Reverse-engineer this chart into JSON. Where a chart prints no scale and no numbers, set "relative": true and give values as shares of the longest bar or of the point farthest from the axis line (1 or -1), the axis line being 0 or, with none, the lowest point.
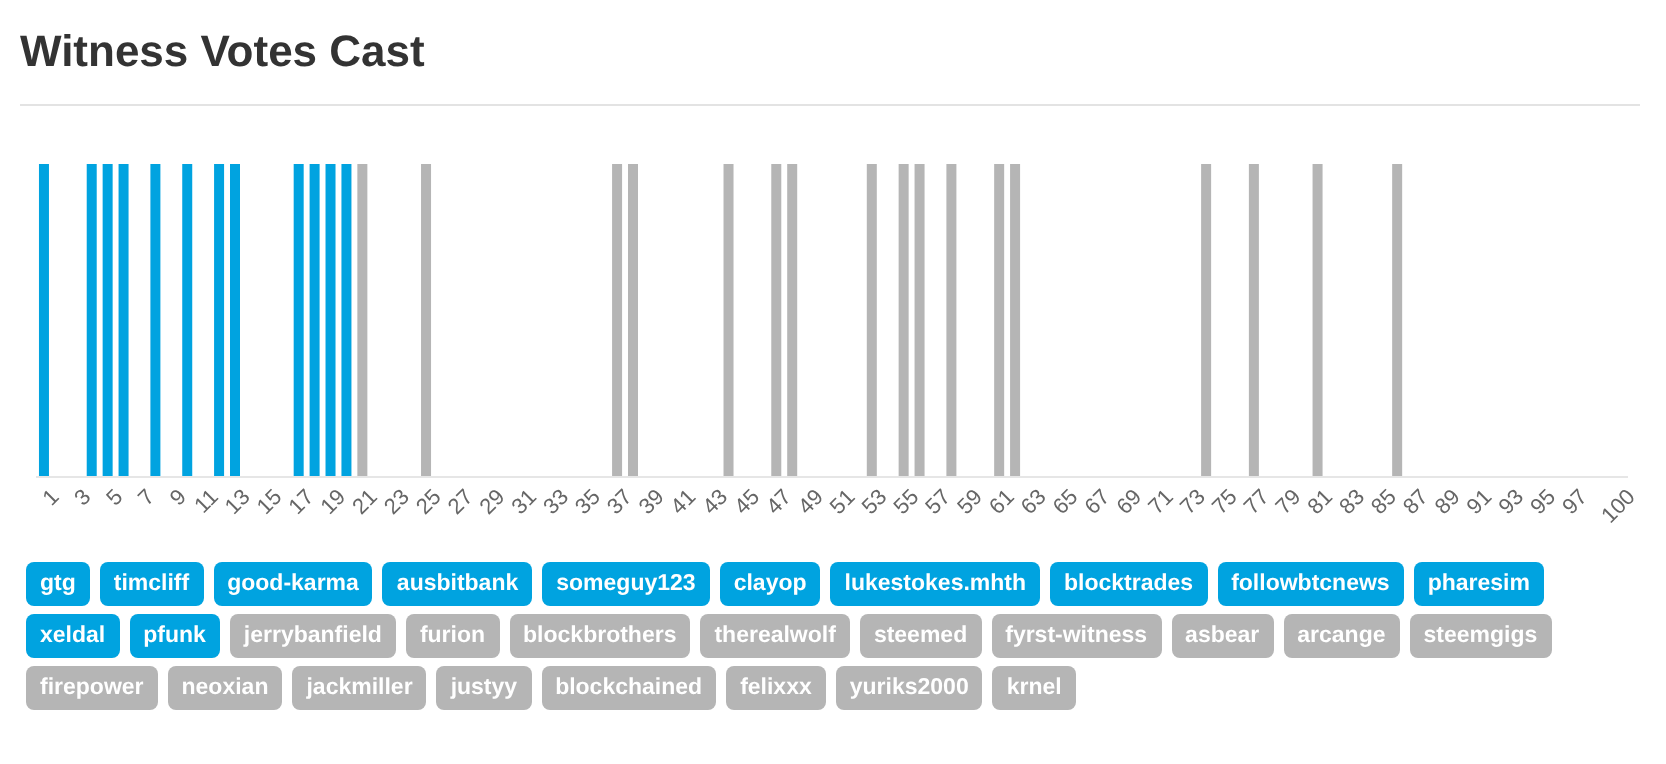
{
  "chart_data": {
    "type": "bar",
    "title": "Witness Votes Cast",
    "relative": true,
    "categories": [
      "1",
      null,
      "3",
      null,
      "5",
      null,
      "7",
      null,
      "9",
      null,
      "11",
      null,
      "13",
      null,
      "15",
      null,
      "17",
      null,
      "19",
      null,
      "21",
      null,
      "23",
      null,
      "25",
      null,
      "27",
      null,
      "29",
      null,
      "31",
      null,
      "33",
      null,
      "35",
      null,
      "37",
      null,
      "39",
      null,
      "41",
      null,
      "43",
      null,
      "45",
      null,
      "47",
      null,
      "49",
      null,
      "51",
      null,
      "53",
      null,
      "55",
      null,
      "57",
      null,
      "59",
      null,
      "61",
      null,
      "63",
      null,
      "65",
      null,
      "67",
      null,
      "69",
      null,
      "71",
      null,
      "73",
      null,
      "75",
      null,
      "77",
      null,
      "79",
      null,
      "81",
      null,
      "83",
      null,
      "85",
      null,
      "87",
      null,
      "89",
      null,
      "91",
      null,
      "93",
      null,
      "95",
      null,
      "97",
      null,
      null,
      "100"
    ],
    "values": [
      1,
      null,
      null,
      1,
      1,
      1,
      null,
      1,
      null,
      1,
      null,
      1,
      1,
      null,
      null,
      null,
      1,
      1,
      1,
      1,
      1,
      null,
      null,
      null,
      1,
      null,
      null,
      null,
      null,
      null,
      null,
      null,
      null,
      null,
      null,
      null,
      1,
      1,
      null,
      null,
      null,
      null,
      null,
      1,
      null,
      null,
      1,
      1,
      null,
      null,
      null,
      null,
      1,
      null,
      1,
      1,
      null,
      1,
      null,
      null,
      1,
      1,
      null,
      null,
      null,
      null,
      null,
      null,
      null,
      null,
      null,
      null,
      null,
      1,
      null,
      null,
      1,
      null,
      null,
      null,
      1,
      null,
      null,
      null,
      null,
      1,
      null,
      null,
      null,
      null,
      null,
      null,
      null,
      null,
      null,
      null,
      null,
      null,
      null,
      null
    ],
    "colors": [
      "#00a3e0",
      null,
      null,
      "#00a3e0",
      "#00a3e0",
      "#00a3e0",
      null,
      "#00a3e0",
      null,
      "#00a3e0",
      null,
      "#00a3e0",
      "#00a3e0",
      null,
      null,
      null,
      "#00a3e0",
      "#00a3e0",
      "#00a3e0",
      "#00a3e0",
      "#b5b5b5",
      null,
      null,
      null,
      "#b5b5b5",
      null,
      null,
      null,
      null,
      null,
      null,
      null,
      null,
      null,
      null,
      null,
      "#b5b5b5",
      "#b5b5b5",
      null,
      null,
      null,
      null,
      null,
      "#b5b5b5",
      null,
      null,
      "#b5b5b5",
      "#b5b5b5",
      null,
      null,
      null,
      null,
      "#b5b5b5",
      null,
      "#b5b5b5",
      "#b5b5b5",
      null,
      "#b5b5b5",
      null,
      null,
      "#b5b5b5",
      "#b5b5b5",
      null,
      null,
      null,
      null,
      null,
      null,
      null,
      null,
      null,
      null,
      null,
      "#b5b5b5",
      null,
      null,
      "#b5b5b5",
      null,
      null,
      null,
      "#b5b5b5",
      null,
      null,
      null,
      null,
      "#b5b5b5",
      null,
      null,
      null,
      null,
      null,
      null,
      null,
      null,
      null,
      null,
      null,
      null,
      null,
      null
    ],
    "annotations": [
      "gtg",
      "timcliff",
      "good-karma",
      "ausbitbank",
      "someguy123",
      "clayop",
      "lukestokes.mhth",
      "blocktrades",
      "followbtcnews",
      "pharesim",
      "xeldal",
      "pfunk",
      "jerrybanfield",
      "furion",
      "blockbrothers",
      "therealwolf",
      "steemed",
      "fyrst-witness",
      "asbear",
      "arcange",
      "steemgigs",
      "firepower",
      "neoxian",
      "jackmiller",
      "justyy",
      "blockchained",
      "felixxx",
      "yuriks2000",
      "krnel"
    ]
  }
}
